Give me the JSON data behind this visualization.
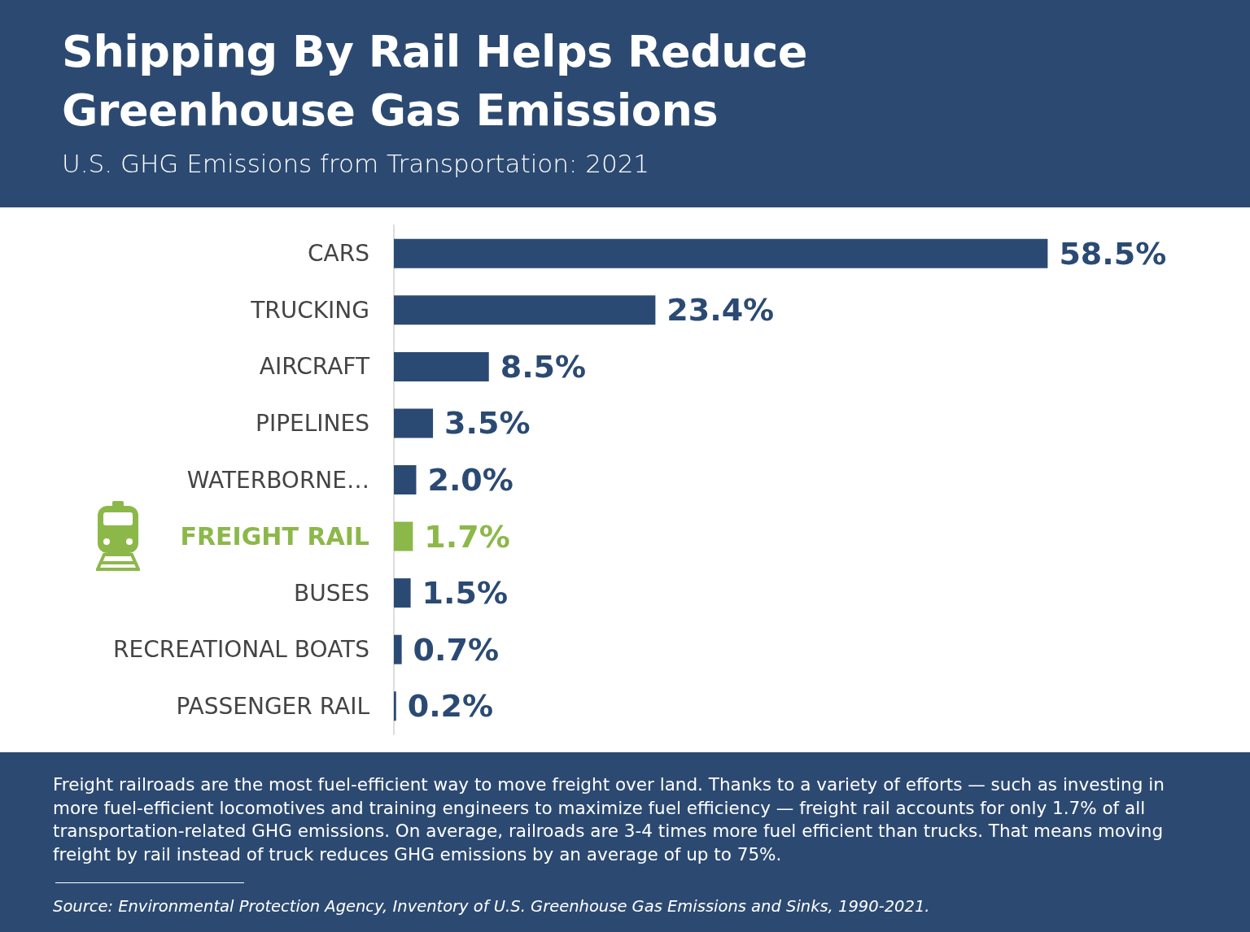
{
  "chart_data": {
    "type": "bar",
    "orientation": "horizontal",
    "title": "Shipping By Rail Helps Reduce Greenhouse Gas Emissions",
    "subtitle": "U.S. GHG Emissions from Transportation: 2021",
    "categories": [
      "CARS",
      "TRUCKING",
      "AIRCRAFT",
      "PIPELINES",
      "WATERBORNE…",
      "FREIGHT RAIL",
      "BUSES",
      "RECREATIONAL BOATS",
      "PASSENGER RAIL"
    ],
    "values": [
      58.5,
      23.4,
      8.5,
      3.5,
      2.0,
      1.7,
      1.5,
      0.7,
      0.2
    ],
    "colors": [
      "#2b4a73",
      "#2b4a73",
      "#2b4a73",
      "#2b4a73",
      "#2b4a73",
      "#8cb84a",
      "#2b4a73",
      "#2b4a73",
      "#2b4a73"
    ],
    "value_labels": [
      "58.5%",
      "23.4%",
      "8.5%",
      "3.5%",
      "2.0%",
      "1.7%",
      "1.5%",
      "0.7%",
      "0.2%"
    ],
    "annotations": [
      "Freight railroads are the most fuel-efficient way to move freight over land. Thanks to a variety of efforts — such as investing in more fuel-efficient locomotives and training engineers to maximize fuel efficiency — freight rail accounts for only 1.7% of all transportation-related GHG emissions. On average, railroads are 3-4 times more fuel efficient than trucks. That means moving freight by rail instead of truck reduces GHG emissions by an average of up to 75%.",
      "Source: Environmental Protection Agency, Inventory of U.S. Greenhouse Gas Emissions and Sinks, 1990-2021."
    ]
  }
}
